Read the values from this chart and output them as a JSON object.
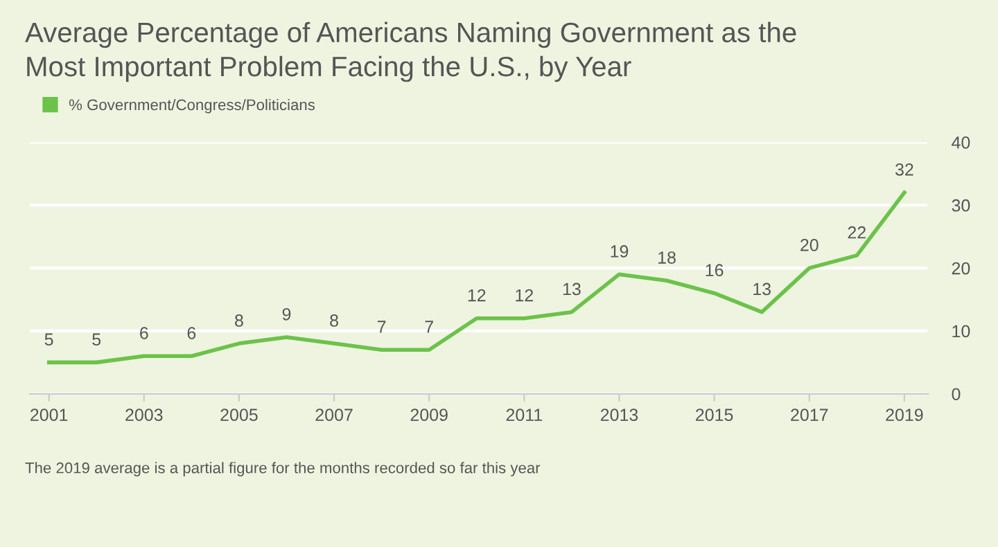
{
  "chart_data": {
    "type": "line",
    "title": "Average Percentage of Americans Naming Government as the\nMost Important Problem Facing the U.S., by Year",
    "x": [
      2001,
      2002,
      2003,
      2004,
      2005,
      2006,
      2007,
      2008,
      2009,
      2010,
      2011,
      2012,
      2013,
      2014,
      2015,
      2016,
      2017,
      2018,
      2019
    ],
    "series": [
      {
        "name": "% Government/Congress/Politicians",
        "color": "#6cc24a",
        "values": [
          5,
          5,
          6,
          6,
          8,
          9,
          8,
          7,
          7,
          12,
          12,
          13,
          19,
          18,
          16,
          13,
          20,
          22,
          32
        ]
      }
    ],
    "xlim": [
      2000.6,
      2019.5
    ],
    "xticks": [
      2001,
      2003,
      2005,
      2007,
      2009,
      2011,
      2013,
      2015,
      2017,
      2019
    ],
    "ylim": [
      0,
      40
    ],
    "yticks": [
      0,
      10,
      20,
      30,
      40
    ],
    "grid": "y",
    "legend": "top left",
    "data_labels": true,
    "marker": "none",
    "line_style": "solid",
    "annotations": [
      "The 2019 average is a partial figure for the months recorded so far this year"
    ]
  }
}
